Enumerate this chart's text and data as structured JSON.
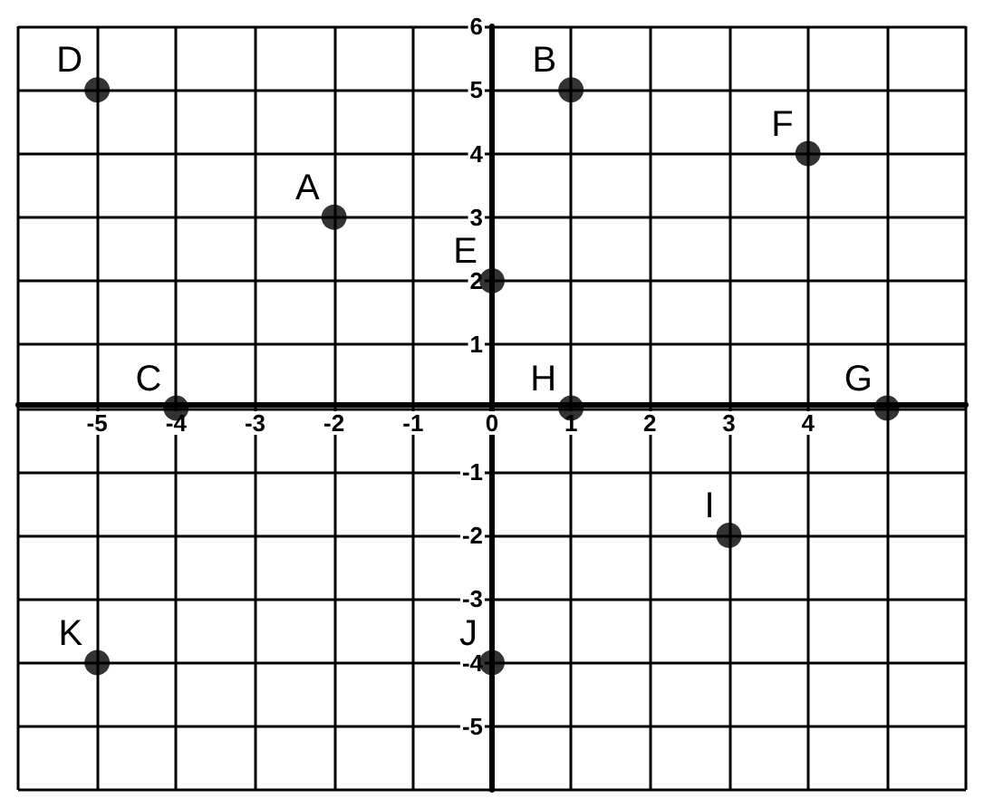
{
  "chart_data": {
    "type": "scatter",
    "x": [
      -2,
      1,
      -4,
      -5,
      0,
      4,
      5,
      1,
      3,
      0,
      -5
    ],
    "values": [
      3,
      5,
      0,
      5,
      2,
      4,
      0,
      0,
      -2,
      -4,
      -4
    ],
    "color": "#000000",
    "marker": "circle",
    "grid": true,
    "xlim": [
      -6,
      6
    ],
    "ylim": [
      -6,
      6
    ],
    "xticks": [
      -5,
      -4,
      -3,
      -2,
      -1,
      0,
      1,
      2,
      3,
      4
    ],
    "yticks": [
      -5,
      -4,
      -3,
      -2,
      -1,
      1,
      2,
      3,
      4,
      5,
      6
    ],
    "annotations": [
      {
        "text": "A",
        "x": -2,
        "y": 3
      },
      {
        "text": "B",
        "x": 1,
        "y": 5
      },
      {
        "text": "C",
        "x": -4,
        "y": 0
      },
      {
        "text": "D",
        "x": -5,
        "y": 5
      },
      {
        "text": "E",
        "x": 0,
        "y": 2
      },
      {
        "text": "F",
        "x": 4,
        "y": 4
      },
      {
        "text": "G",
        "x": 5,
        "y": 0
      },
      {
        "text": "H",
        "x": 1,
        "y": 0
      },
      {
        "text": "I",
        "x": 3,
        "y": -2
      },
      {
        "text": "J",
        "x": 0,
        "y": -4
      },
      {
        "text": "K",
        "x": -5,
        "y": -4
      }
    ]
  }
}
